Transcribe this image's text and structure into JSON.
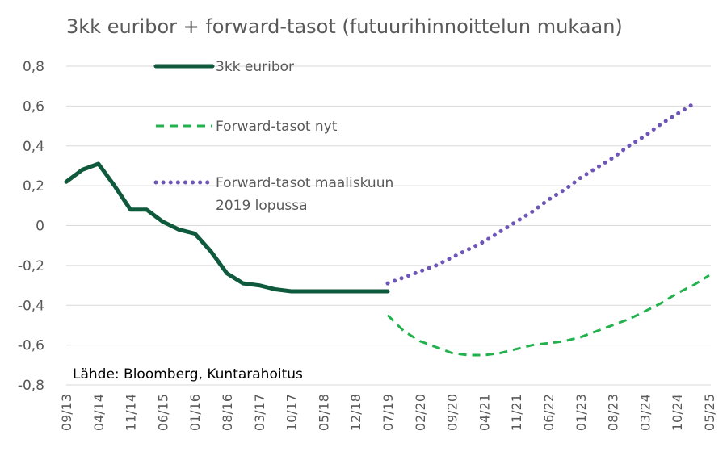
{
  "chart_data": {
    "type": "line",
    "title": "3kk euribor + forward-tasot (futuurihinnoittelun mukaan)",
    "source": "Lähde: Bloomberg, Kuntarahoitus",
    "xlabel": "",
    "ylabel": "",
    "ylim": [
      -0.8,
      0.8
    ],
    "y_ticks": [
      "0,8",
      "0,6",
      "0,4",
      "0,2",
      "0",
      "-0,2",
      "-0,4",
      "-0,6",
      "-0,8"
    ],
    "y_tick_values": [
      0.8,
      0.6,
      0.4,
      0.2,
      0,
      -0.2,
      -0.4,
      -0.6,
      -0.8
    ],
    "x_ticks": [
      "09/13",
      "04/14",
      "11/14",
      "06/15",
      "01/16",
      "08/16",
      "03/17",
      "10/17",
      "05/18",
      "12/18",
      "07/19",
      "02/20",
      "09/20",
      "04/21",
      "11/21",
      "06/22",
      "01/23",
      "08/23",
      "03/24",
      "10/24",
      "05/25"
    ],
    "grid": true,
    "legend_position": "top-left",
    "series": [
      {
        "name": "3kk euribor",
        "color": "#0f5a3c",
        "style": "solid",
        "x": [
          0,
          0.5,
          1,
          1.5,
          2,
          2.5,
          3,
          3.5,
          4,
          4.5,
          5,
          5.5,
          6,
          6.5,
          7,
          7.5,
          8,
          8.5,
          9,
          9.5,
          10
        ],
        "values": [
          0.22,
          0.28,
          0.31,
          0.2,
          0.08,
          0.08,
          0.02,
          -0.02,
          -0.04,
          -0.13,
          -0.24,
          -0.29,
          -0.3,
          -0.32,
          -0.33,
          -0.33,
          -0.33,
          -0.33,
          -0.33,
          -0.33,
          -0.33
        ]
      },
      {
        "name": "Forward-tasot nyt",
        "color": "#22b14c",
        "style": "dashed",
        "x": [
          10,
          10.5,
          11,
          11.5,
          12,
          12.5,
          13,
          13.5,
          14,
          14.5,
          15,
          15.5,
          16,
          16.5,
          17,
          17.5,
          18,
          18.5,
          19,
          19.5,
          20
        ],
        "values": [
          -0.45,
          -0.53,
          -0.58,
          -0.61,
          -0.64,
          -0.65,
          -0.65,
          -0.64,
          -0.62,
          -0.6,
          -0.59,
          -0.58,
          -0.56,
          -0.53,
          -0.5,
          -0.47,
          -0.43,
          -0.39,
          -0.34,
          -0.3,
          -0.25
        ]
      },
      {
        "name": "Forward-tasot maaliskuun 2019 lopussa",
        "color": "#6e55b8",
        "style": "dotted",
        "x": [
          10,
          10.5,
          11,
          11.5,
          12,
          12.5,
          13,
          13.5,
          14,
          14.5,
          15,
          15.5,
          16,
          16.5,
          17,
          17.5,
          18,
          18.5,
          19,
          19.5
        ],
        "values": [
          -0.29,
          -0.26,
          -0.23,
          -0.2,
          -0.16,
          -0.12,
          -0.08,
          -0.03,
          0.02,
          0.07,
          0.13,
          0.18,
          0.24,
          0.29,
          0.34,
          0.4,
          0.45,
          0.51,
          0.56,
          0.61
        ]
      }
    ],
    "legend": [
      {
        "label_lines": [
          "3kk euribor"
        ]
      },
      {
        "label_lines": [
          "Forward-tasot nyt"
        ]
      },
      {
        "label_lines": [
          "Forward-tasot maaliskuun",
          "2019 lopussa"
        ]
      }
    ]
  }
}
